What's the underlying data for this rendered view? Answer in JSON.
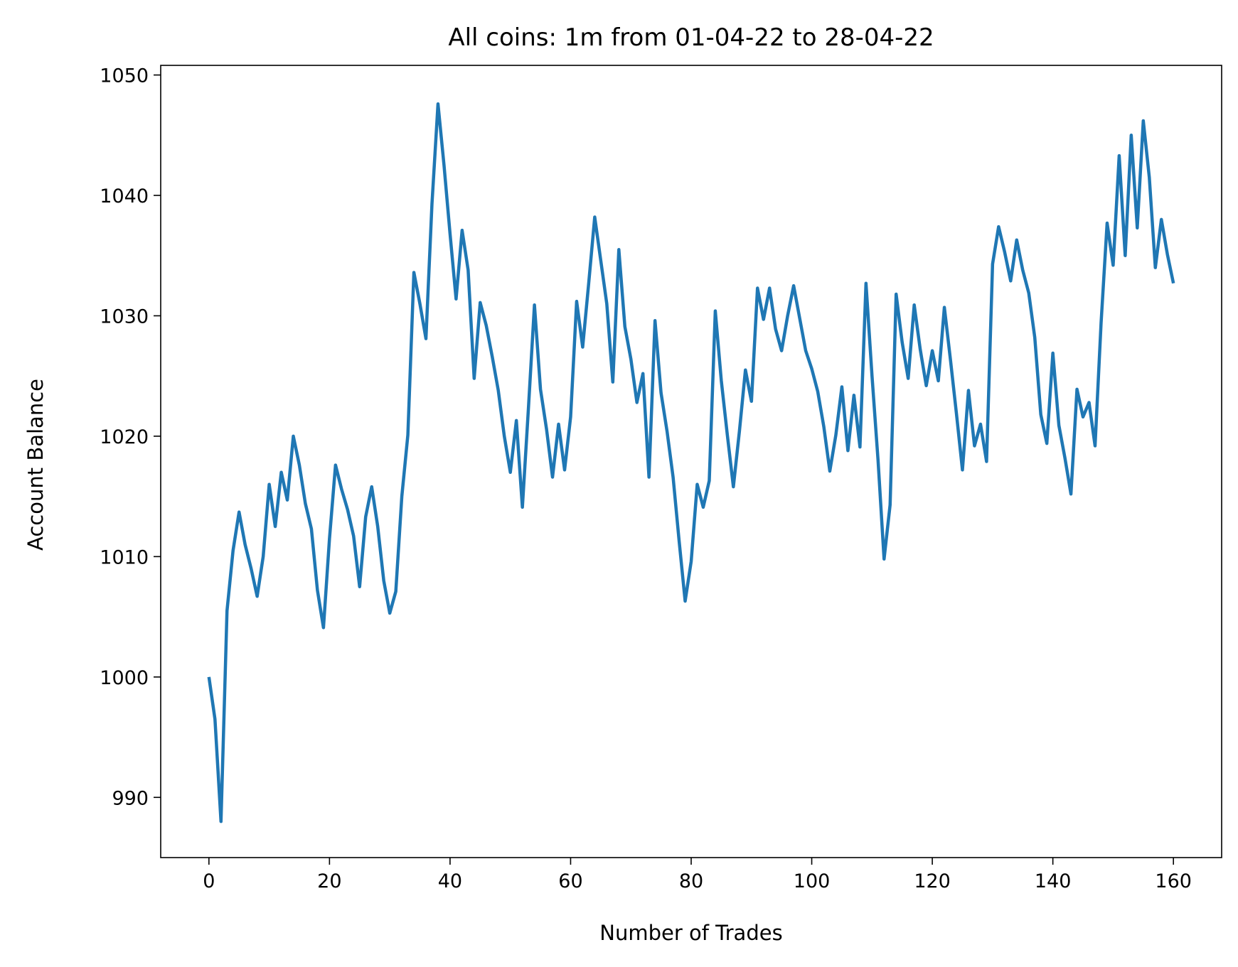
{
  "chart_data": {
    "type": "line",
    "title": "All coins: 1m from 01-04-22 to 28-04-22",
    "xlabel": "Number of Trades",
    "ylabel": "Account Balance",
    "xlim": [
      -8,
      168
    ],
    "ylim": [
      985,
      1050.8
    ],
    "xticks": [
      0,
      20,
      40,
      60,
      80,
      100,
      120,
      140,
      160
    ],
    "xtick_labels": [
      "0",
      "20",
      "40",
      "60",
      "80",
      "100",
      "120",
      "140",
      "160"
    ],
    "yticks": [
      990,
      1000,
      1010,
      1020,
      1030,
      1040,
      1050
    ],
    "ytick_labels": [
      "990",
      "1000",
      "1010",
      "1020",
      "1030",
      "1040",
      "1050"
    ],
    "grid": false,
    "legend": null,
    "colors": {
      "line": "#1f77b4"
    },
    "series": [
      {
        "values": [
          1000.0,
          996.5,
          988.0,
          1005.5,
          1010.5,
          1013.7,
          1011.0,
          1009.0,
          1006.7,
          1010.0,
          1016.0,
          1012.5,
          1017.0,
          1014.7,
          1020.0,
          1017.6,
          1014.4,
          1012.3,
          1007.2,
          1004.1,
          1011.5,
          1017.6,
          1015.6,
          1013.9,
          1011.7,
          1007.5,
          1013.3,
          1015.8,
          1012.5,
          1008.0,
          1005.3,
          1007.1,
          1015.0,
          1020.1,
          1033.6,
          1031.0,
          1028.1,
          1039.3,
          1047.6,
          1042.5,
          1036.8,
          1031.4,
          1037.1,
          1033.8,
          1024.8,
          1031.1,
          1029.2,
          1026.6,
          1023.8,
          1020.0,
          1017.0,
          1021.3,
          1014.1,
          1022.3,
          1030.9,
          1023.9,
          1020.6,
          1016.6,
          1021.0,
          1017.2,
          1021.6,
          1031.2,
          1027.4,
          1032.7,
          1038.2,
          1034.6,
          1031.0,
          1024.5,
          1035.5,
          1029.1,
          1026.4,
          1022.8,
          1025.2,
          1016.6,
          1029.6,
          1023.6,
          1020.4,
          1016.6,
          1011.3,
          1006.3,
          1009.6,
          1016.0,
          1014.1,
          1016.3,
          1030.4,
          1024.6,
          1020.1,
          1015.8,
          1020.4,
          1025.5,
          1022.9,
          1032.3,
          1029.7,
          1032.3,
          1028.9,
          1027.1,
          1030.0,
          1032.5,
          1029.8,
          1027.1,
          1025.6,
          1023.7,
          1020.8,
          1017.1,
          1020.1,
          1024.1,
          1018.8,
          1023.4,
          1019.1,
          1032.7,
          1025.0,
          1018.0,
          1009.8,
          1014.3,
          1031.8,
          1027.8,
          1024.8,
          1030.9,
          1027.2,
          1024.2,
          1027.1,
          1024.6,
          1030.7,
          1026.4,
          1021.9,
          1017.2,
          1023.8,
          1019.2,
          1021.0,
          1017.9,
          1034.3,
          1037.4,
          1035.3,
          1032.9,
          1036.3,
          1033.8,
          1031.9,
          1028.2,
          1021.8,
          1019.4,
          1026.9,
          1020.9,
          1018.2,
          1015.2,
          1023.9,
          1021.6,
          1022.8,
          1019.2,
          1029.4,
          1037.7,
          1034.2,
          1043.3,
          1035.0,
          1045.0,
          1037.3,
          1046.2,
          1041.5,
          1034.0,
          1038.0,
          1035.1,
          1032.7
        ]
      }
    ]
  }
}
